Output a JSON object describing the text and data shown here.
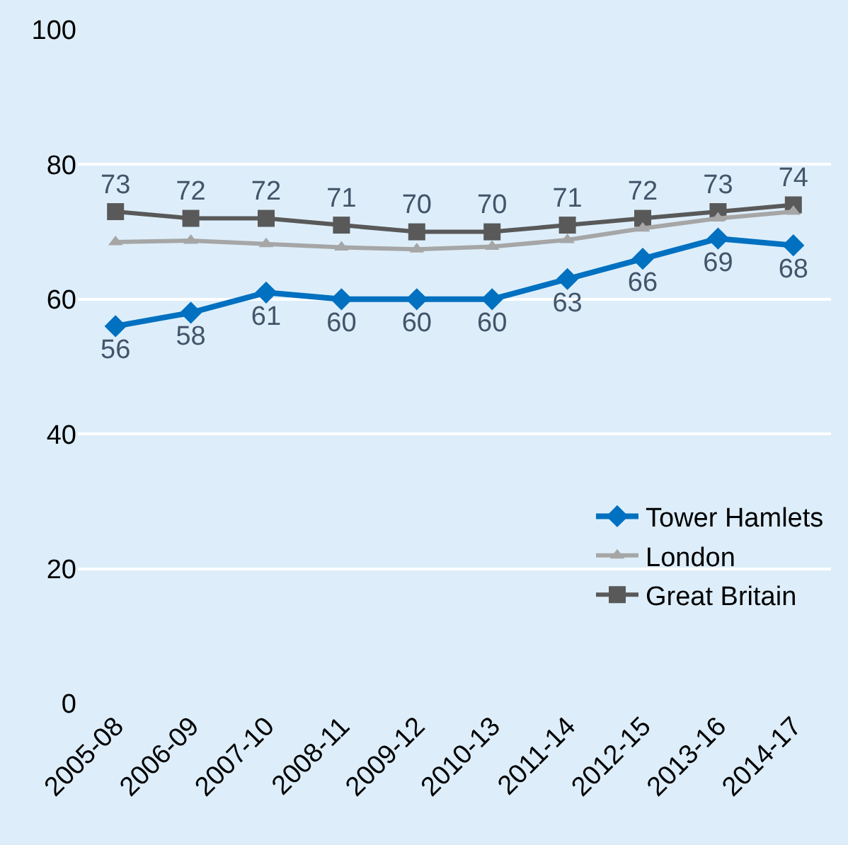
{
  "chart_data": {
    "type": "line",
    "categories": [
      "2005-08",
      "2006-09",
      "2007-10",
      "2008-11",
      "2009-12",
      "2010-13",
      "2011-14",
      "2012-15",
      "2013-16",
      "2014-17"
    ],
    "series": [
      {
        "name": "Tower Hamlets",
        "color": "#0070c0",
        "marker": "diamond",
        "values": [
          56,
          58,
          61,
          60,
          60,
          60,
          63,
          66,
          69,
          68
        ],
        "value_labels": [
          "56",
          "58",
          "61",
          "60",
          "60",
          "60",
          "63",
          "66",
          "69",
          "68"
        ]
      },
      {
        "name": "London",
        "color": "#a6a6a6",
        "marker": "triangle",
        "values": [
          68.5,
          68.7,
          68.2,
          67.7,
          67.4,
          67.8,
          68.8,
          70.5,
          72,
          73
        ]
      },
      {
        "name": "Great Britain",
        "color": "#595959",
        "marker": "square",
        "values": [
          73,
          72,
          72,
          71,
          70,
          70,
          71,
          72,
          73,
          74
        ],
        "value_labels": [
          "73",
          "72",
          "72",
          "71",
          "70",
          "70",
          "71",
          "72",
          "73",
          "74"
        ]
      }
    ],
    "ylim": [
      0,
      100
    ],
    "yticks": [
      0,
      20,
      40,
      60,
      80,
      100
    ],
    "grid": "y",
    "legend": "bottom right",
    "line_style": "solid"
  }
}
